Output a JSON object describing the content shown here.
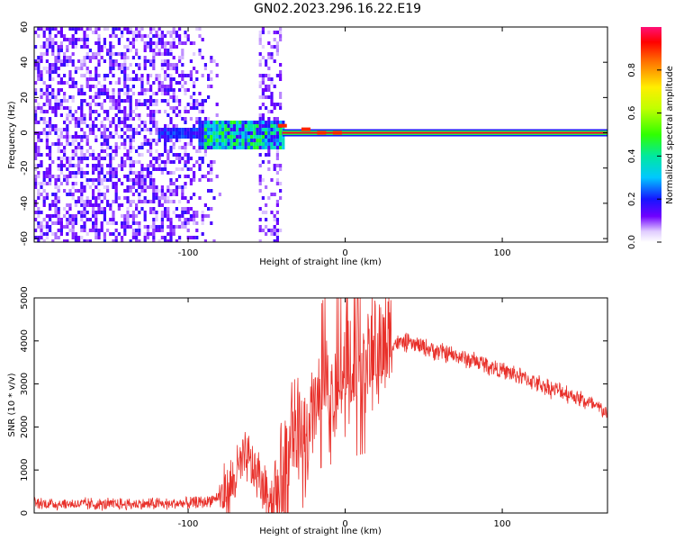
{
  "title": "GN02.2023.296.16.22.E19",
  "chart_data": [
    {
      "type": "heatmap",
      "xlabel": "Height of straight line (km)",
      "ylabel": "Frequency (Hz)",
      "xlim": [
        -198,
        167
      ],
      "ylim": [
        -62,
        60
      ],
      "xticks": [
        "-100",
        "0",
        "100"
      ],
      "xtick_values": [
        -100,
        0,
        100
      ],
      "yticks": [
        "60",
        "40",
        "20",
        "0",
        "-20",
        "-40",
        "-60"
      ],
      "ytick_values": [
        60,
        40,
        20,
        0,
        -20,
        -40,
        -60
      ],
      "colorbar": {
        "label": "Normalized spectral amplitude",
        "range": [
          0,
          1
        ],
        "ticks": [
          "0.0",
          "0.2",
          "0.4",
          "0.6",
          "0.8"
        ],
        "tick_values": [
          0.0,
          0.2,
          0.4,
          0.6,
          0.8
        ]
      },
      "features": {
        "noise_region_km": [
          -198,
          -78
        ],
        "noise_patch_km": [
          -55,
          -42
        ],
        "main_line_freq_hz": 0,
        "main_line_start_km": -40
      }
    },
    {
      "type": "line",
      "xlabel": "Height of straight line (km)",
      "ylabel": "SNR (10 * v/v)",
      "xlim": [
        -198,
        167
      ],
      "ylim": [
        0,
        5000
      ],
      "xticks": [
        "-100",
        "0",
        "100"
      ],
      "xtick_values": [
        -100,
        0,
        100
      ],
      "yticks": [
        "5000",
        "4000",
        "3000",
        "2000",
        "1000",
        "0"
      ],
      "ytick_values": [
        5000,
        4000,
        3000,
        2000,
        1000,
        0
      ],
      "color": "#e8302a",
      "series": [
        {
          "x": [
            -198,
            -180,
            -160,
            -140,
            -120,
            -100,
            -90,
            -82,
            -75,
            -70,
            -66,
            -62,
            -58,
            -54,
            -50,
            -46,
            -42,
            -38,
            -34,
            -30,
            -26,
            -22,
            -18,
            -14,
            -10,
            -6,
            -2,
            2,
            6,
            10,
            14,
            18,
            22,
            26,
            30,
            35,
            40,
            45,
            50,
            55,
            60,
            70,
            80,
            90,
            100,
            110,
            120,
            130,
            140,
            150,
            160,
            167
          ],
          "y": [
            220,
            210,
            200,
            200,
            210,
            220,
            250,
            350,
            500,
            800,
            1200,
            1200,
            1000,
            700,
            500,
            300,
            400,
            1100,
            2000,
            1700,
            1600,
            2200,
            2500,
            2700,
            2800,
            2900,
            3100,
            3200,
            3300,
            3400,
            3500,
            3600,
            3800,
            3900,
            3950,
            3950,
            3950,
            3900,
            3850,
            3800,
            3750,
            3650,
            3550,
            3450,
            3300,
            3200,
            3050,
            2900,
            2800,
            2650,
            2450,
            2350
          ]
        }
      ]
    }
  ]
}
